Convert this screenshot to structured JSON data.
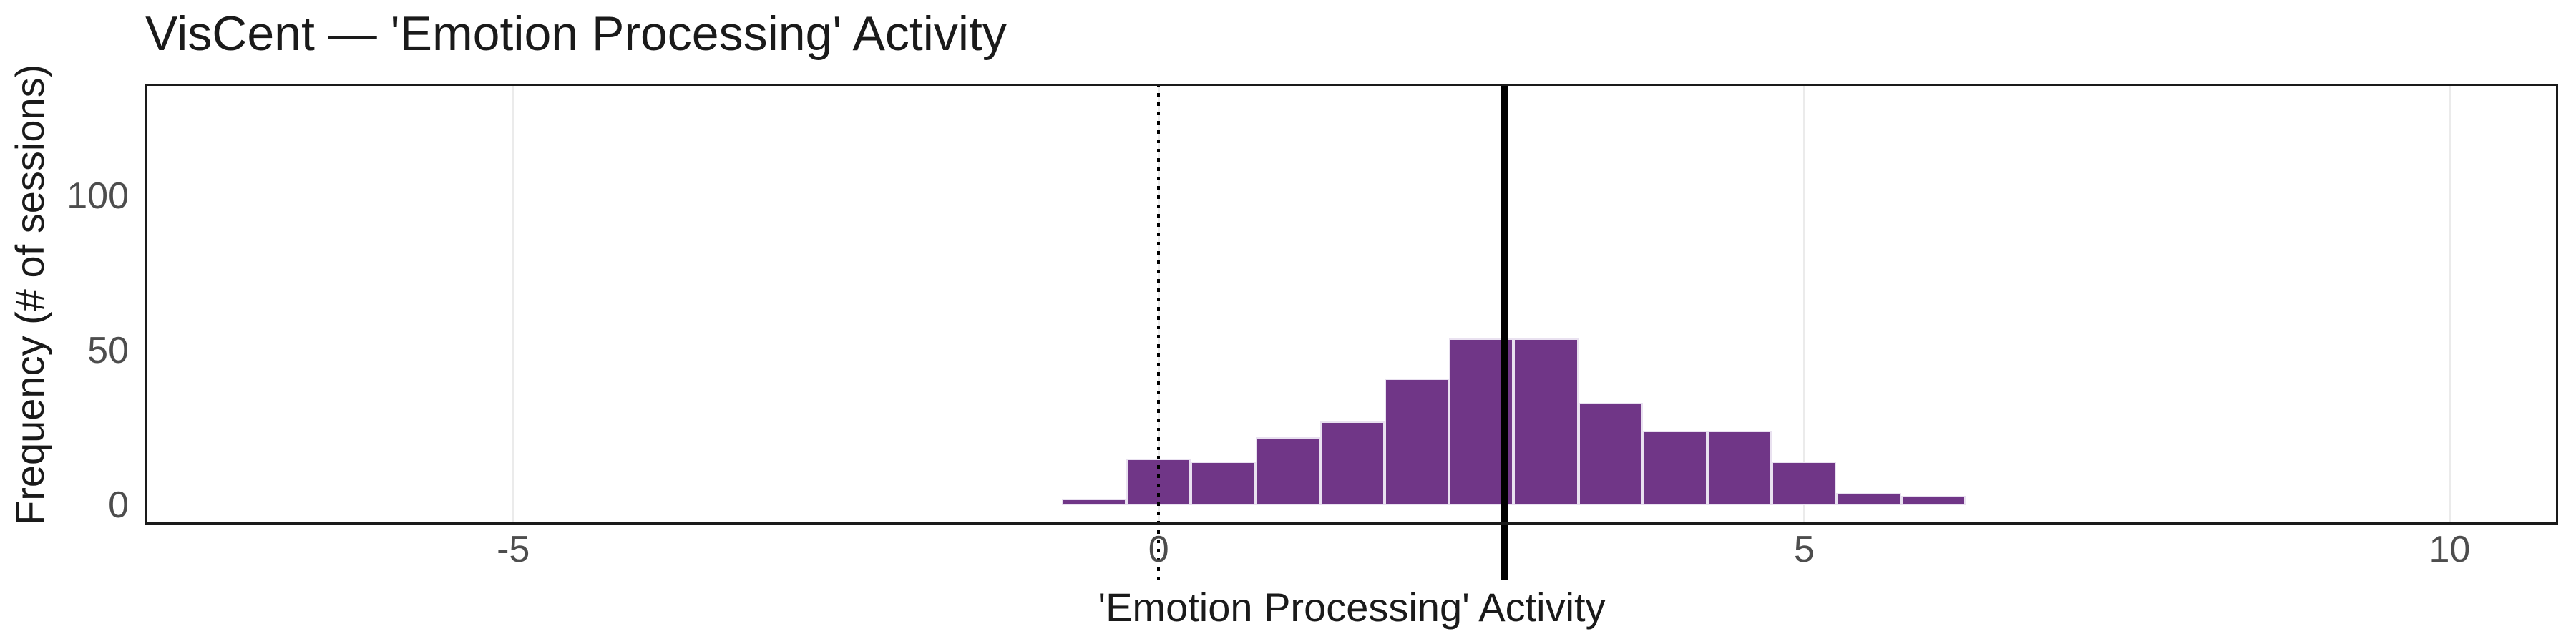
{
  "header": {
    "title": "VisCent — 'Emotion Processing' Activity"
  },
  "chart_data": {
    "type": "bar",
    "subtype": "histogram",
    "title": "VisCent — 'Emotion Processing' Activity",
    "xlabel": "'Emotion Processing' Activity",
    "ylabel": "Frequency (# of sessions)",
    "bin_width": 0.5,
    "bin_centers": [
      -0.5,
      0,
      0.5,
      1,
      1.5,
      2,
      2.5,
      3,
      3.5,
      4,
      4.5,
      5,
      5.5,
      6
    ],
    "counts": [
      2,
      15,
      14,
      22,
      27,
      41,
      54,
      54,
      33,
      24,
      24,
      14,
      4,
      3
    ],
    "total_sessions": 331,
    "x_ticks": [
      -5,
      0,
      5,
      10
    ],
    "y_ticks": [
      0,
      50,
      100
    ],
    "axis": {
      "x_range": [
        -7.85,
        10.84
      ],
      "y_range": [
        -6.3,
        136.4
      ]
    },
    "grid": "vertical-major-only",
    "legend": "none",
    "reference_lines": [
      {
        "x": 0,
        "style": "dotted",
        "color": "#000000",
        "meaning": "zero-baseline"
      },
      {
        "x": 2.68,
        "style": "solid-thick",
        "color": "#000000",
        "meaning": "mean"
      }
    ],
    "colors": {
      "bar_fill": "#703687",
      "bar_border": "#e9e1f0",
      "gridline": "#ebebeb",
      "panel_border": "#1a1a1a",
      "tick_label": "#4d4d4d",
      "text": "#1a1a1a",
      "background": "#ffffff"
    }
  }
}
